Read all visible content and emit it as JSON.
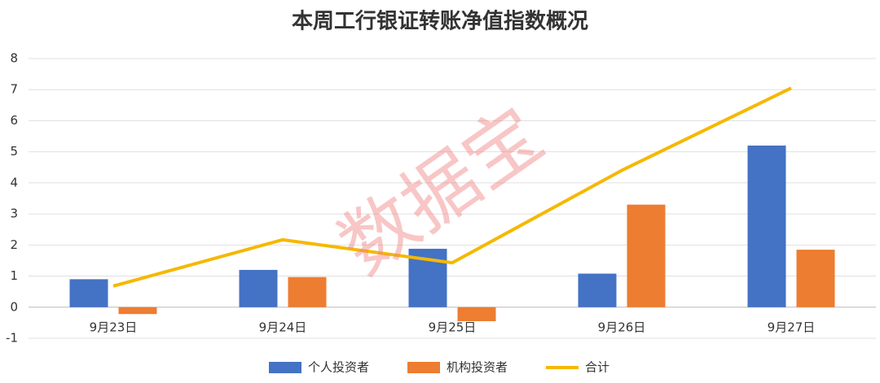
{
  "chart_data": {
    "type": "bar",
    "title": "本周工行银证转账净值指数概况",
    "watermark": "数据宝",
    "categories": [
      "9月23日",
      "9月24日",
      "9月25日",
      "9月26日",
      "9月27日"
    ],
    "series": [
      {
        "name": "个人投资者",
        "type": "bar",
        "color": "#4472c4",
        "values": [
          0.9,
          1.2,
          1.88,
          1.08,
          5.2
        ]
      },
      {
        "name": "机构投资者",
        "type": "bar",
        "color": "#ed7d31",
        "values": [
          -0.22,
          0.97,
          -0.45,
          3.3,
          1.85
        ]
      },
      {
        "name": "合计",
        "type": "line",
        "color": "#f5b800",
        "values": [
          0.68,
          2.17,
          1.43,
          4.4,
          7.05
        ]
      }
    ],
    "ylim": [
      -1,
      8
    ],
    "yticks": [
      -1,
      0,
      1,
      2,
      3,
      4,
      5,
      6,
      7,
      8
    ],
    "grid": true,
    "legend": "bottom"
  }
}
